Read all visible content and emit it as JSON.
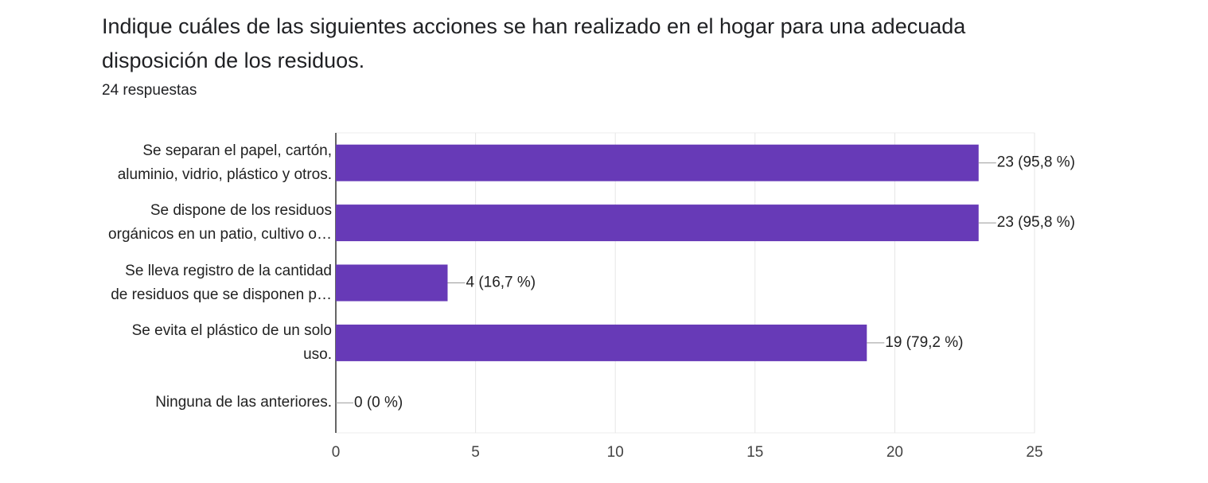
{
  "chart_data": {
    "type": "bar",
    "orientation": "horizontal",
    "title": "Indique cuáles de las siguientes acciones se han realizado en el hogar para una adecuada\ndisposición de los residuos.",
    "subtitle": "24 respuestas",
    "categories": [
      "Se separan el papel, cartón,\naluminio, vidrio, plástico y otros.",
      "Se dispone de los residuos\norgánicos en un patio, cultivo o…",
      "Se lleva registro de la cantidad\nde residuos que se disponen p…",
      "Se evita el plástico de un solo\nuso.",
      "Ninguna de las anteriores."
    ],
    "values": [
      23,
      23,
      4,
      19,
      0
    ],
    "value_labels": [
      "23 (95,8 %)",
      "23 (95,8 %)",
      "4 (16,7 %)",
      "19 (79,2 %)",
      "0 (0 %)"
    ],
    "color": "#673ab7",
    "xlim": [
      0,
      25
    ],
    "xticks": [
      0,
      5,
      10,
      15,
      20,
      25
    ],
    "grid": true
  }
}
